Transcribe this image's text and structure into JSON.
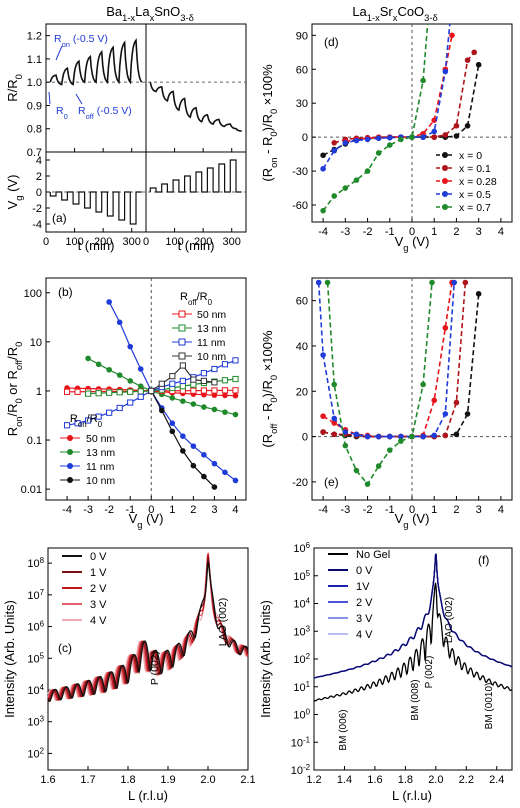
{
  "figure": {
    "title_left": "Ba1-xLaxSnO3-δ",
    "title_right": "La1-xSrxCoO3-δ"
  },
  "chart_data": [
    {
      "id": "a",
      "type": "line",
      "panel_label": "(a)",
      "xlabel": "t (min)",
      "ylabel_top": "R/R0",
      "ylabel_bottom": "Vg (V)",
      "xlim": [
        0,
        350
      ],
      "ylim_top": [
        0.7,
        1.25
      ],
      "ylim_bottom": [
        -5,
        5
      ],
      "xticks": [
        "0",
        "100",
        "200",
        "300"
      ],
      "yticks_top": [
        "0.7",
        "0.8",
        "0.9",
        "1.0",
        "1.1",
        "1.2"
      ],
      "yticks_bottom": [
        "-4",
        "-2",
        "0",
        "2",
        "4"
      ],
      "annotations": [
        "Ron (-0.5 V)",
        "R0",
        "Roff (-0.5 V)"
      ],
      "left": {
        "Vg_steps": [
          -0.5,
          -1,
          -1.5,
          -2,
          -2.5,
          -3,
          -3.5,
          -4
        ],
        "Ron_R0": [
          1.03,
          1.06,
          1.09,
          1.11,
          1.13,
          1.15,
          1.17,
          1.18
        ],
        "Roff_R0": [
          0.99,
          0.99,
          1.0,
          1.0,
          1.0,
          1.0,
          1.0,
          1.0
        ]
      },
      "right": {
        "Vg_steps": [
          0.5,
          1,
          1.5,
          2,
          2.5,
          3,
          3.5,
          4
        ],
        "Ron_R0": [
          0.96,
          0.92,
          0.88,
          0.85,
          0.83,
          0.82,
          0.81,
          0.8
        ],
        "Roff_R0": [
          0.98,
          0.96,
          0.93,
          0.89,
          0.86,
          0.84,
          0.82,
          0.79
        ]
      }
    },
    {
      "id": "b",
      "type": "line",
      "panel_label": "(b)",
      "xlabel": "Vg (V)",
      "ylabel": "Ron/R0 or Roff/R0",
      "yscale": "log",
      "xlim": [
        -5,
        4.5
      ],
      "ylim": [
        0.006,
        200
      ],
      "xticks": [
        "-4",
        "-3",
        "-2",
        "-1",
        "0",
        "1",
        "2",
        "3",
        "4"
      ],
      "yticks": [
        "0.01",
        "0.1",
        "1",
        "10",
        "100"
      ],
      "legend_on_title": "Ron/R0",
      "legend_off_title": "Roff/R0",
      "series": [
        {
          "name": "50 nm",
          "kind": "on",
          "color": "#e8141b",
          "x": [
            -4,
            -3.5,
            -3,
            -2.5,
            -2,
            -1.5,
            -1,
            -0.5,
            0,
            0.5,
            1,
            1.5,
            2,
            2.5,
            3,
            3.5,
            4
          ],
          "y": [
            1.15,
            1.13,
            1.12,
            1.1,
            1.09,
            1.07,
            1.05,
            1.02,
            1.0,
            0.96,
            0.92,
            0.89,
            0.86,
            0.84,
            0.82,
            0.81,
            0.8
          ]
        },
        {
          "name": "13 nm",
          "kind": "on",
          "color": "#1f8a2b",
          "x": [
            -3,
            -2.5,
            -2,
            -1.5,
            -1,
            -0.5,
            0,
            0.5,
            1,
            1.5,
            2,
            2.5,
            3,
            3.5,
            4
          ],
          "y": [
            4.6,
            3.5,
            2.7,
            2.1,
            1.6,
            1.25,
            1.0,
            0.85,
            0.72,
            0.62,
            0.54,
            0.47,
            0.42,
            0.37,
            0.33
          ]
        },
        {
          "name": "11 nm",
          "kind": "on",
          "color": "#1f3bd8",
          "x": [
            -2,
            -1.5,
            -1,
            -0.5,
            0,
            0.5,
            1,
            1.5,
            2,
            2.5,
            3,
            3.5,
            4
          ],
          "y": [
            65,
            25,
            8,
            2.8,
            1.0,
            0.45,
            0.22,
            0.12,
            0.075,
            0.05,
            0.033,
            0.022,
            0.015
          ]
        },
        {
          "name": "10 nm",
          "kind": "on",
          "color": "#111111",
          "x": [
            0,
            0.5,
            1,
            1.5,
            2,
            2.5,
            3
          ],
          "y": [
            1.0,
            0.4,
            0.15,
            0.06,
            0.03,
            0.018,
            0.011
          ]
        },
        {
          "name": "50 nm",
          "kind": "off",
          "color": "#e8141b",
          "x": [
            -4,
            -3.5,
            -3,
            -2.5,
            -2,
            -1.5,
            -1,
            -0.5,
            0,
            0.5,
            1,
            1.5,
            2,
            2.5,
            3,
            3.5,
            4
          ],
          "y": [
            0.96,
            0.96,
            0.97,
            0.97,
            0.98,
            0.98,
            0.98,
            0.99,
            1.0,
            1.0,
            1.0,
            1.01,
            1.01,
            1.02,
            1.02,
            1.03,
            1.03
          ]
        },
        {
          "name": "13 nm",
          "kind": "off",
          "color": "#1f8a2b",
          "x": [
            -3,
            -2.5,
            -2,
            -1.5,
            -1,
            -0.5,
            0,
            0.5,
            1,
            1.5,
            2,
            2.5,
            3,
            3.5,
            4
          ],
          "y": [
            0.88,
            0.9,
            0.92,
            0.94,
            0.96,
            0.98,
            1.0,
            1.06,
            1.15,
            1.25,
            1.35,
            1.45,
            1.55,
            1.65,
            1.75
          ]
        },
        {
          "name": "11 nm",
          "kind": "off",
          "color": "#1f3bd8",
          "x": [
            -4,
            -3.5,
            -3,
            -2.5,
            -2,
            -1.5,
            -1,
            -0.5,
            0,
            0.5,
            1,
            1.5,
            2,
            2.5,
            3,
            3.5,
            4
          ],
          "y": [
            0.2,
            0.22,
            0.25,
            0.3,
            0.36,
            0.45,
            0.58,
            0.76,
            1.0,
            1.2,
            1.4,
            1.6,
            1.9,
            2.3,
            2.8,
            3.5,
            4.2
          ]
        },
        {
          "name": "10 nm",
          "kind": "off",
          "color": "#333333",
          "x": [
            0,
            0.5,
            1,
            1.5,
            2,
            2.5,
            3
          ],
          "y": [
            1.0,
            1.4,
            2.0,
            3.3,
            1.7,
            1.6,
            1.5
          ]
        }
      ]
    },
    {
      "id": "c",
      "type": "line",
      "panel_label": "(c)",
      "xlabel": "L (r.l.u)",
      "ylabel": "Intensity (Arb. Units)",
      "yscale": "log",
      "xlim": [
        1.6,
        2.1
      ],
      "ylim": [
        30,
        300000000.0
      ],
      "xticks": [
        "1.6",
        "1.7",
        "1.8",
        "1.9",
        "2.0",
        "2.1"
      ],
      "yticks": [
        "10^2",
        "10^3",
        "10^4",
        "10^5",
        "10^6",
        "10^7",
        "10^8"
      ],
      "annotations": [
        "P (002)",
        "LAO (002)"
      ],
      "series": [
        {
          "name": "0 V",
          "color": "#111111"
        },
        {
          "name": "1 V",
          "color": "#7a0e14"
        },
        {
          "name": "2 V",
          "color": "#c4161c"
        },
        {
          "name": "3 V",
          "color": "#e0606a"
        },
        {
          "name": "4 V",
          "color": "#f2aab0"
        }
      ]
    },
    {
      "id": "d",
      "type": "line",
      "panel_label": "(d)",
      "xlabel": "Vg (V)",
      "ylabel": "(Ron - R0)/R0 ×100%",
      "xlim": [
        -4.5,
        4.5
      ],
      "ylim": [
        -75,
        100
      ],
      "xticks": [
        "-4",
        "-3",
        "-2",
        "-1",
        "0",
        "1",
        "2",
        "3",
        "4"
      ],
      "yticks": [
        "-60",
        "-30",
        "0",
        "30",
        "60",
        "90"
      ],
      "series": [
        {
          "name": "x = 0",
          "color": "#111111",
          "x": [
            -4,
            -3.5,
            -3,
            -2.5,
            -2,
            -1.5,
            -1,
            -0.5,
            0,
            0.5,
            1,
            1.5,
            2,
            2.5,
            3
          ],
          "y": [
            -16,
            -11,
            -6,
            -2,
            -1,
            -0.5,
            0,
            0,
            0,
            0,
            0,
            0,
            1,
            10,
            64
          ]
        },
        {
          "name": "x = 0.1",
          "color": "#b0141b",
          "x": [
            -3.5,
            -3,
            -2.5,
            -2,
            -1.5,
            -1,
            -0.5,
            0,
            0.5,
            1,
            1.5,
            2,
            2.5,
            2.8
          ],
          "y": [
            -5,
            -2,
            -1,
            -0.5,
            0,
            0,
            0,
            0,
            0,
            0,
            2,
            10,
            68,
            75
          ]
        },
        {
          "name": "x = 0.28",
          "color": "#e8141b",
          "x": [
            -3,
            -2.5,
            -2,
            -1.5,
            -1,
            -0.5,
            0,
            0.5,
            1,
            1.5,
            1.8
          ],
          "y": [
            -4,
            -2,
            -1,
            -0.5,
            0,
            0,
            0,
            3,
            15,
            60,
            90
          ]
        },
        {
          "name": "x = 0.5",
          "color": "#1f3bd8",
          "x": [
            -4,
            -3.5,
            -3,
            -2.5,
            -2,
            -1.5,
            -1,
            -0.5,
            0,
            0.5,
            1,
            1.5,
            1.7
          ],
          "y": [
            -28,
            -12,
            -5,
            -3,
            -2,
            -1,
            -0.5,
            0,
            0,
            0,
            5,
            58,
            100
          ]
        },
        {
          "name": "x = 0.7",
          "color": "#1f8a2b",
          "x": [
            -4,
            -3.5,
            -3,
            -2.5,
            -2,
            -1.5,
            -1,
            -0.5,
            0,
            0.5,
            0.7
          ],
          "y": [
            -65,
            -52,
            -45,
            -38,
            -30,
            -14,
            -7,
            -2,
            0,
            50,
            100
          ]
        }
      ]
    },
    {
      "id": "e",
      "type": "line",
      "panel_label": "(e)",
      "xlabel": "Vg (V)",
      "ylabel": "(Roff - R0)/R0 ×100%",
      "xlim": [
        -4.5,
        4.5
      ],
      "ylim": [
        -28,
        70
      ],
      "xticks": [
        "-4",
        "-3",
        "-2",
        "-1",
        "0",
        "1",
        "2",
        "3",
        "4"
      ],
      "yticks": [
        "-20",
        "0",
        "20",
        "40",
        "60"
      ],
      "series": [
        {
          "name": "x = 0",
          "color": "#111111",
          "x": [
            -4,
            -3.5,
            -3,
            -2.5,
            -2,
            -1.5,
            -1,
            -0.5,
            0,
            0.5,
            1,
            1.5,
            2,
            2.5,
            3
          ],
          "y": [
            2,
            1,
            0.5,
            0,
            0,
            0,
            0,
            0,
            0,
            0,
            0,
            0.5,
            1,
            10,
            63
          ]
        },
        {
          "name": "x = 0.1",
          "color": "#b0141b",
          "x": [
            -4,
            -3.5,
            -3,
            -2.5,
            -2,
            -1.5,
            -1,
            -0.5,
            0,
            0.5,
            1,
            1.5,
            2,
            2.4
          ],
          "y": [
            2,
            1,
            1,
            0.5,
            0,
            0,
            0,
            0,
            0,
            0,
            0,
            0.5,
            15,
            68
          ]
        },
        {
          "name": "x = 0.28",
          "color": "#e8141b",
          "x": [
            -4,
            -3.5,
            -3,
            -2.5,
            -2,
            -1.5,
            -1,
            -0.5,
            0,
            0.5,
            1,
            1.5,
            1.8
          ],
          "y": [
            9,
            6,
            3,
            1,
            0.5,
            0,
            0,
            0,
            0,
            0.5,
            16,
            48,
            68
          ]
        },
        {
          "name": "x = 0.5",
          "color": "#1f3bd8",
          "x": [
            -4.2,
            -4,
            -3.5,
            -3,
            -2.5,
            -2,
            -1.5,
            -1,
            -0.5,
            0,
            0.5,
            1,
            1.5,
            1.9
          ],
          "y": [
            68,
            36,
            8,
            2,
            1,
            0,
            0,
            0,
            0,
            0,
            0,
            0.5,
            10,
            68
          ]
        },
        {
          "name": "x = 0.7",
          "color": "#1f8a2b",
          "x": [
            -3.8,
            -3.5,
            -3,
            -2.5,
            -2,
            -1.5,
            -1,
            -0.5,
            0,
            0.5,
            0.9
          ],
          "y": [
            68,
            23,
            -4,
            -15,
            -21,
            -13,
            -6,
            -2,
            0,
            23,
            68
          ]
        }
      ]
    },
    {
      "id": "f",
      "type": "line",
      "panel_label": "(f)",
      "xlabel": "L (r.l.u)",
      "ylabel": "Intensity (Arb. Units)",
      "yscale": "log",
      "xlim": [
        1.2,
        2.5
      ],
      "ylim": [
        0.01,
        1000000.0
      ],
      "xticks": [
        "1.2",
        "1.4",
        "1.6",
        "1.8",
        "2.0",
        "2.2",
        "2.4"
      ],
      "yticks": [
        "10^-2",
        "10^-1",
        "10^0",
        "10^1",
        "10^2",
        "10^3",
        "10^4",
        "10^5",
        "10^6"
      ],
      "annotations": [
        "BM (006)",
        "BM (008)",
        "P (002)",
        "LAO (002)",
        "BM (0010)"
      ],
      "series": [
        {
          "name": "No Gel",
          "color": "#000000"
        },
        {
          "name": "0 V",
          "color": "#0a0a6e"
        },
        {
          "name": "1V",
          "color": "#2020b0"
        },
        {
          "name": "2 V",
          "color": "#4a55d8"
        },
        {
          "name": "3 V",
          "color": "#8a92e8"
        },
        {
          "name": "4 V",
          "color": "#b8bef2"
        }
      ]
    }
  ]
}
